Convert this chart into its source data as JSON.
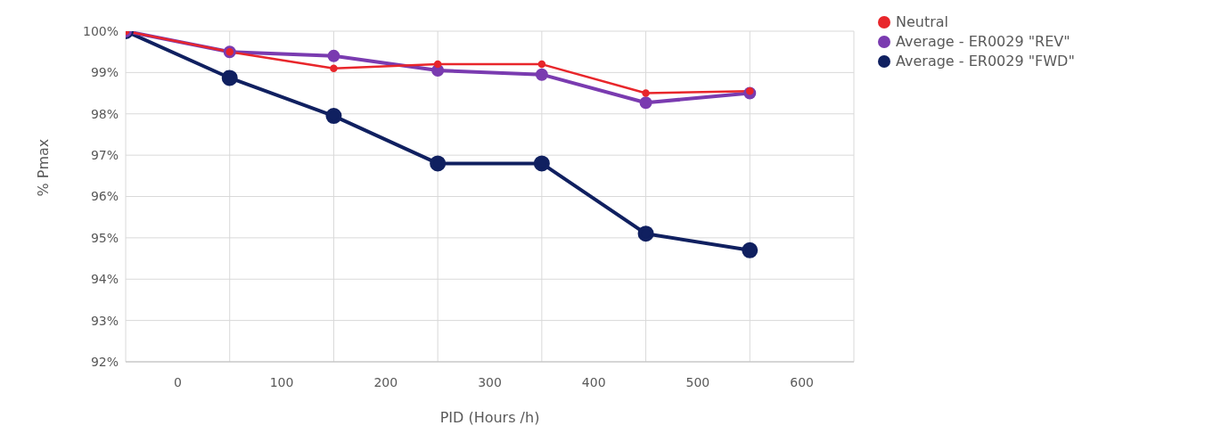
{
  "chart_data": {
    "type": "line",
    "xlabel": "PID (Hours /h)",
    "ylabel": "% Pmax",
    "x": [
      -50,
      50,
      150,
      250,
      350,
      450,
      550
    ],
    "xlim": [
      -50,
      650
    ],
    "xticks": [
      {
        "value": -50,
        "label": null
      },
      0,
      {
        "value": 50,
        "label": null
      },
      100,
      {
        "value": 150,
        "label": null
      },
      200,
      {
        "value": 250,
        "label": null
      },
      300,
      {
        "value": 350,
        "label": null
      },
      400,
      {
        "value": 450,
        "label": null
      },
      500,
      {
        "value": 550,
        "label": null
      },
      600,
      {
        "value": 650,
        "label": null
      }
    ],
    "ylim": [
      92,
      100
    ],
    "yticks": [
      {
        "value": 92,
        "label": "92%"
      },
      {
        "value": 93,
        "label": "93%"
      },
      {
        "value": 94,
        "label": "94%"
      },
      {
        "value": 95,
        "label": "95%"
      },
      {
        "value": 96,
        "label": "96%"
      },
      {
        "value": 97,
        "label": "97%"
      },
      {
        "value": 98,
        "label": "98%"
      },
      {
        "value": 99,
        "label": "99%"
      },
      {
        "value": 100,
        "label": "100%"
      }
    ],
    "series": [
      {
        "name": "Neutral",
        "color": "#e8262b",
        "values": [
          100,
          99.5,
          99.1,
          99.2,
          99.2,
          98.5,
          98.55
        ]
      },
      {
        "name": "Average - ER0029 \"REV\"",
        "color": "#7a3bb0",
        "values": [
          100,
          99.5,
          99.4,
          99.05,
          98.95,
          98.27,
          98.5
        ]
      },
      {
        "name": "Average - ER0029 \"FWD\"",
        "color": "#102060",
        "values": [
          100,
          98.87,
          97.95,
          96.8,
          96.8,
          95.1,
          94.7
        ]
      }
    ],
    "grid": true,
    "legend": "top right",
    "marker": "circle",
    "line_style": "solid"
  }
}
